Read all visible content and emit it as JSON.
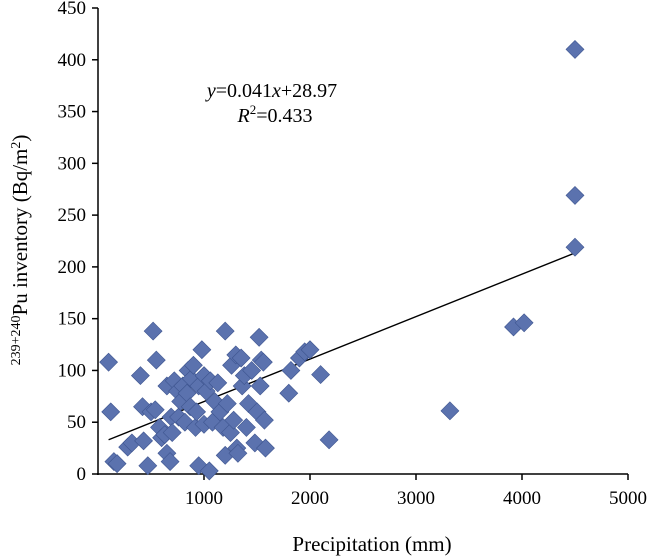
{
  "chart_data": {
    "type": "scatter",
    "title": "",
    "xlabel": "Precipitation (mm)",
    "ylabel_sup": "239+240",
    "ylabel_main": "Pu inventory (Bq/m",
    "ylabel_exp": "2",
    "ylabel_close": ")",
    "xlim": [
      0,
      5000
    ],
    "ylim": [
      0,
      450
    ],
    "xticks": [
      1000,
      2000,
      3000,
      4000,
      5000
    ],
    "yticks": [
      0,
      50,
      100,
      150,
      200,
      250,
      300,
      350,
      400,
      450
    ],
    "marker_color": "#5B72AE",
    "trendline_color": "#000000",
    "equation": {
      "y": "y",
      "eq": "=0.041",
      "x": "x",
      "rest": "+28.97",
      "r": "R",
      "r_sup": "2",
      "r_rest": "=0.433"
    },
    "trendline": {
      "slope": 0.041,
      "intercept": 28.97,
      "x_range": [
        100,
        4500
      ]
    },
    "points": [
      [
        100,
        108
      ],
      [
        120,
        60
      ],
      [
        150,
        12
      ],
      [
        180,
        10
      ],
      [
        280,
        26
      ],
      [
        320,
        30
      ],
      [
        400,
        95
      ],
      [
        420,
        65
      ],
      [
        430,
        32
      ],
      [
        470,
        8
      ],
      [
        500,
        60
      ],
      [
        520,
        138
      ],
      [
        540,
        62
      ],
      [
        550,
        110
      ],
      [
        580,
        45
      ],
      [
        600,
        35
      ],
      [
        630,
        38
      ],
      [
        650,
        20
      ],
      [
        650,
        85
      ],
      [
        680,
        12
      ],
      [
        690,
        55
      ],
      [
        700,
        40
      ],
      [
        720,
        90
      ],
      [
        750,
        80
      ],
      [
        760,
        55
      ],
      [
        780,
        70
      ],
      [
        800,
        85
      ],
      [
        820,
        50
      ],
      [
        840,
        78
      ],
      [
        850,
        100
      ],
      [
        870,
        65
      ],
      [
        880,
        92
      ],
      [
        900,
        105
      ],
      [
        920,
        45
      ],
      [
        930,
        60
      ],
      [
        950,
        85
      ],
      [
        950,
        8
      ],
      [
        980,
        120
      ],
      [
        1000,
        95
      ],
      [
        1000,
        48
      ],
      [
        1020,
        80
      ],
      [
        1050,
        3
      ],
      [
        1060,
        90
      ],
      [
        1080,
        50
      ],
      [
        1100,
        70
      ],
      [
        1130,
        88
      ],
      [
        1150,
        60
      ],
      [
        1180,
        45
      ],
      [
        1200,
        138
      ],
      [
        1200,
        18
      ],
      [
        1220,
        68
      ],
      [
        1250,
        40
      ],
      [
        1260,
        105
      ],
      [
        1280,
        52
      ],
      [
        1300,
        115
      ],
      [
        1310,
        25
      ],
      [
        1320,
        20
      ],
      [
        1350,
        112
      ],
      [
        1360,
        85
      ],
      [
        1380,
        95
      ],
      [
        1400,
        45
      ],
      [
        1420,
        68
      ],
      [
        1450,
        100
      ],
      [
        1480,
        30
      ],
      [
        1500,
        60
      ],
      [
        1520,
        132
      ],
      [
        1530,
        85
      ],
      [
        1540,
        110
      ],
      [
        1560,
        108
      ],
      [
        1570,
        52
      ],
      [
        1580,
        25
      ],
      [
        1800,
        78
      ],
      [
        1820,
        100
      ],
      [
        1900,
        112
      ],
      [
        1950,
        118
      ],
      [
        2000,
        120
      ],
      [
        2100,
        96
      ],
      [
        2180,
        33
      ],
      [
        3320,
        61
      ],
      [
        3920,
        142
      ],
      [
        4020,
        146
      ],
      [
        4500,
        410
      ],
      [
        4500,
        269
      ],
      [
        4500,
        219
      ]
    ]
  }
}
